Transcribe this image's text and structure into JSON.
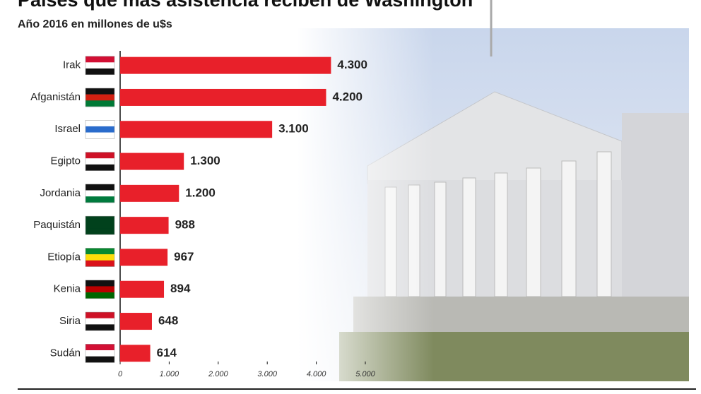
{
  "chart_data": {
    "type": "bar",
    "orientation": "horizontal",
    "title": "Países que más asistencia reciben de Washington",
    "subtitle": "Año 2016 en millones de u$s",
    "categories": [
      "Irak",
      "Afganistán",
      "Israel",
      "Egipto",
      "Jordania",
      "Paquistán",
      "Etiopía",
      "Kenia",
      "Siria",
      "Sudán"
    ],
    "values": [
      4300,
      4200,
      3100,
      1300,
      1200,
      988,
      967,
      894,
      648,
      614
    ],
    "value_labels": [
      "4.300",
      "4.200",
      "3.100",
      "1.300",
      "1.200",
      "988",
      "967",
      "894",
      "648",
      "614"
    ],
    "color": "#e8202a",
    "xlim": [
      0,
      5000
    ],
    "xticks": [
      0,
      {
        "value": 1000,
        "label": "1.000"
      },
      {
        "value": 2000,
        "label": "2.000"
      },
      {
        "value": 3000,
        "label": "3.000"
      },
      {
        "value": 4000,
        "label": "4.000"
      },
      {
        "value": 5000,
        "label": "5.000"
      }
    ],
    "grid": false
  }
}
